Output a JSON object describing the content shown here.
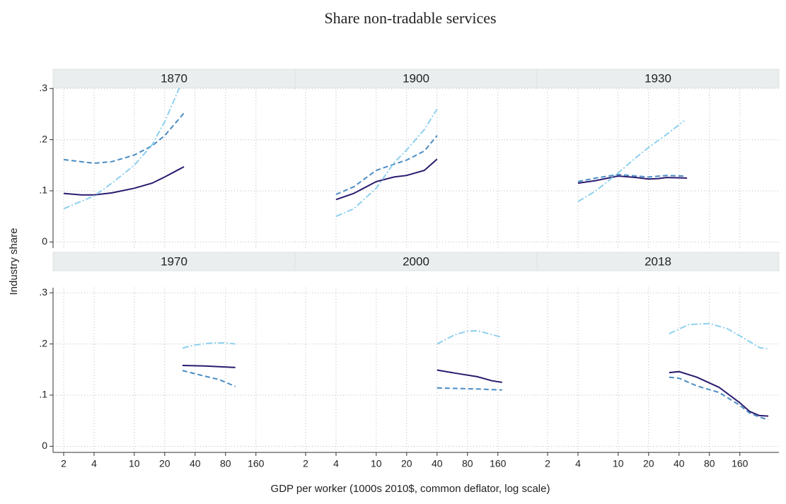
{
  "chart_data": {
    "type": "line",
    "title": "Share non-tradable services",
    "x_label": "GDP per worker (1000s 2010$, common deflator, log scale)",
    "y_label": "Industry share",
    "xscale": "log",
    "xlim": [
      1.57,
      390
    ],
    "ylim": [
      -0.012,
      0.31
    ],
    "xticks": [
      2,
      4,
      10,
      20,
      40,
      80,
      160
    ],
    "yticks": [
      0,
      {
        "value": 0.1,
        "label": ".1"
      },
      {
        "value": 0.2,
        "label": ".2"
      },
      {
        "value": 0.3,
        "label": ".3"
      }
    ],
    "grid": true,
    "panels": [
      {
        "title": "1870",
        "series": [
          {
            "color": "#2b1a6e",
            "linestyle": "solid",
            "x": [
              2,
              3,
              4,
              6,
              10,
              15,
              20,
              31
            ],
            "values": [
              0.095,
              0.092,
              0.092,
              0.096,
              0.105,
              0.115,
              0.127,
              0.147
            ]
          },
          {
            "color": "#4a8cc2",
            "linestyle": "dash",
            "x": [
              2,
              4,
              6,
              10,
              15,
              20,
              31
            ],
            "values": [
              0.161,
              0.154,
              0.157,
              0.17,
              0.188,
              0.208,
              0.252
            ]
          },
          {
            "color": "#8dd0ee",
            "linestyle": "dashdot",
            "x": [
              2,
              4,
              6,
              10,
              15,
              20,
              30
            ],
            "values": [
              0.065,
              0.09,
              0.115,
              0.15,
              0.19,
              0.235,
              0.315
            ]
          }
        ]
      },
      {
        "title": "1900",
        "series": [
          {
            "color": "#2b1a6e",
            "linestyle": "solid",
            "x": [
              4,
              6,
              10,
              15,
              20,
              30,
              40
            ],
            "values": [
              0.083,
              0.095,
              0.118,
              0.127,
              0.13,
              0.14,
              0.162
            ]
          },
          {
            "color": "#4a8cc2",
            "linestyle": "dash",
            "x": [
              4,
              6,
              10,
              15,
              20,
              30,
              40
            ],
            "values": [
              0.093,
              0.108,
              0.14,
              0.152,
              0.16,
              0.178,
              0.208
            ]
          },
          {
            "color": "#8dd0ee",
            "linestyle": "dashdot",
            "x": [
              4,
              6,
              10,
              15,
              20,
              30,
              40
            ],
            "values": [
              0.05,
              0.065,
              0.105,
              0.155,
              0.18,
              0.22,
              0.26
            ]
          }
        ]
      },
      {
        "title": "1930",
        "series": [
          {
            "color": "#2b1a6e",
            "linestyle": "solid",
            "x": [
              4,
              6,
              10,
              15,
              20,
              25,
              30,
              48
            ],
            "values": [
              0.115,
              0.12,
              0.129,
              0.126,
              0.123,
              0.124,
              0.126,
              0.125
            ]
          },
          {
            "color": "#4a8cc2",
            "linestyle": "dash",
            "x": [
              4,
              6,
              10,
              15,
              20,
              30,
              45
            ],
            "values": [
              0.118,
              0.125,
              0.132,
              0.129,
              0.127,
              0.13,
              0.129
            ]
          },
          {
            "color": "#8dd0ee",
            "linestyle": "dashdot",
            "x": [
              4,
              6,
              10,
              15,
              20,
              30,
              45
            ],
            "values": [
              0.079,
              0.1,
              0.135,
              0.165,
              0.185,
              0.21,
              0.237
            ]
          }
        ]
      },
      {
        "title": "1970",
        "series": [
          {
            "color": "#2b1a6e",
            "linestyle": "solid",
            "x": [
              30,
              50,
              100
            ],
            "values": [
              0.158,
              0.157,
              0.154
            ]
          },
          {
            "color": "#4a8cc2",
            "linestyle": "dash",
            "x": [
              30,
              50,
              70,
              100
            ],
            "values": [
              0.148,
              0.137,
              0.13,
              0.117
            ]
          },
          {
            "color": "#8dd0ee",
            "linestyle": "dashdot",
            "x": [
              30,
              40,
              60,
              80,
              100
            ],
            "values": [
              0.192,
              0.198,
              0.202,
              0.202,
              0.2
            ]
          }
        ]
      },
      {
        "title": "2000",
        "series": [
          {
            "color": "#2b1a6e",
            "linestyle": "solid",
            "x": [
              40,
              60,
              100,
              140,
              176
            ],
            "values": [
              0.149,
              0.143,
              0.136,
              0.128,
              0.125
            ]
          },
          {
            "color": "#4a8cc2",
            "linestyle": "dash",
            "x": [
              40,
              100,
              176
            ],
            "values": [
              0.114,
              0.112,
              0.11
            ]
          },
          {
            "color": "#8dd0ee",
            "linestyle": "dashdot",
            "x": [
              40,
              60,
              80,
              100,
              130,
              176
            ],
            "values": [
              0.2,
              0.218,
              0.225,
              0.226,
              0.22,
              0.213
            ]
          }
        ]
      },
      {
        "title": "2018",
        "series": [
          {
            "color": "#2b1a6e",
            "linestyle": "solid",
            "x": [
              32,
              40,
              60,
              100,
              160,
              200,
              250,
              306
            ],
            "values": [
              0.144,
              0.146,
              0.135,
              0.115,
              0.085,
              0.068,
              0.06,
              0.059
            ]
          },
          {
            "color": "#4a8cc2",
            "linestyle": "dash",
            "x": [
              32,
              40,
              60,
              100,
              160,
              200,
              250,
              306
            ],
            "values": [
              0.135,
              0.133,
              0.118,
              0.105,
              0.08,
              0.065,
              0.057,
              0.052
            ]
          },
          {
            "color": "#8dd0ee",
            "linestyle": "dashdot",
            "x": [
              32,
              50,
              80,
              120,
              180,
              250,
              306
            ],
            "values": [
              0.22,
              0.238,
              0.24,
              0.23,
              0.21,
              0.193,
              0.19
            ]
          }
        ]
      }
    ]
  }
}
